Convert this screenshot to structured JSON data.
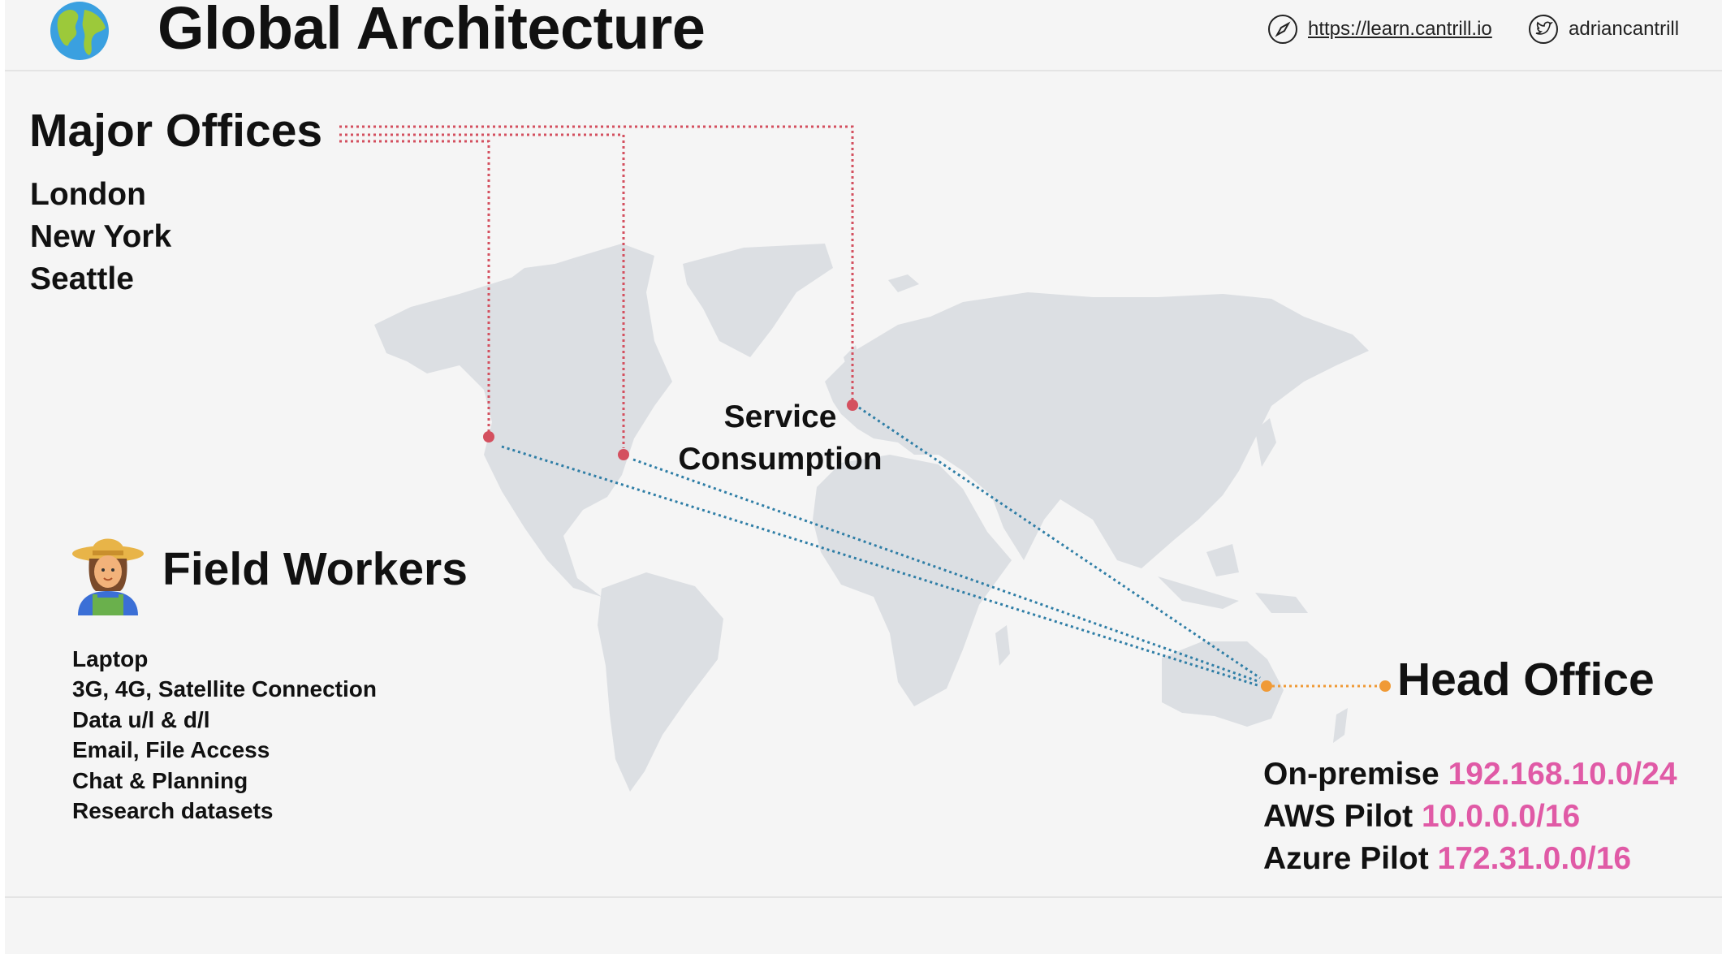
{
  "header": {
    "title": "Global Architecture",
    "url": "https://learn.cantrill.io",
    "handle": "adriancantrill",
    "icons": [
      "globe-icon",
      "compass-icon",
      "twitter-icon"
    ]
  },
  "major_offices": {
    "title": "Major Offices",
    "cities": [
      "London",
      "New York",
      "Seattle"
    ]
  },
  "service_label": {
    "line1": "Service",
    "line2": "Consumption"
  },
  "field_workers": {
    "title": "Field Workers",
    "icon": "farmer-icon",
    "items": [
      "Laptop",
      "3G, 4G, Satellite Connection",
      "Data u/l & d/l",
      "Email, File Access",
      "Chat & Planning",
      "Research datasets"
    ]
  },
  "head_office": {
    "title": "Head Office",
    "networks": [
      {
        "label": "On-premise",
        "cidr": "192.168.10.0/24"
      },
      {
        "label": "AWS Pilot",
        "cidr": "10.0.0.0/16"
      },
      {
        "label": "Azure Pilot",
        "cidr": "172.31.0.0/16"
      }
    ]
  },
  "colors": {
    "office_links": "#d4505f",
    "service_links": "#2f7ea6",
    "head_link": "#f09a36",
    "cidr_text": "#e05aa6",
    "map_land": "#dcdfe3"
  }
}
